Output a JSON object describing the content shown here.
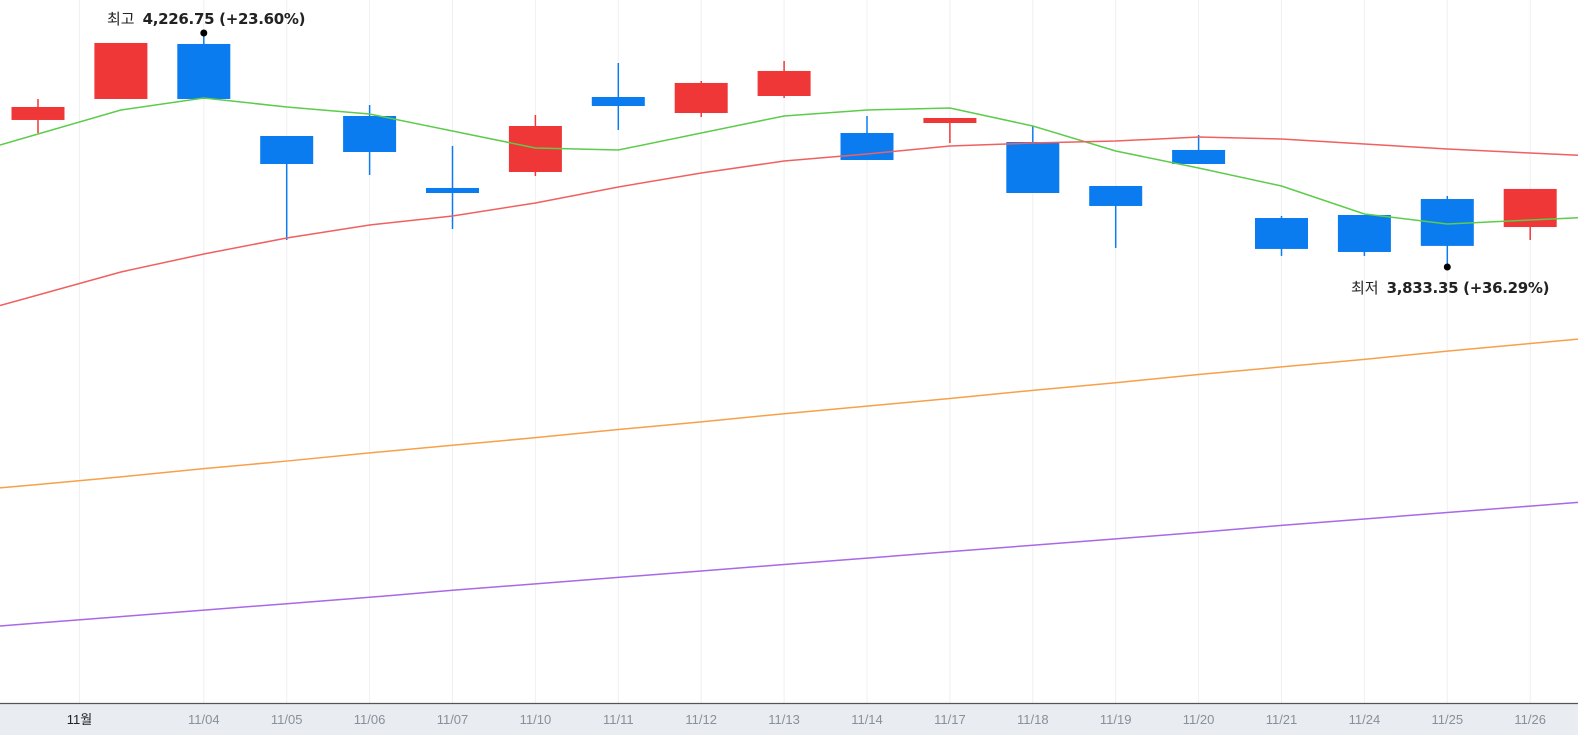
{
  "chart_data": {
    "type": "candlestick",
    "colors": {
      "up": "#ef3737",
      "down": "#0b7cf0",
      "ma5": "#5ccc4a",
      "ma20": "#f06060",
      "ma60": "#f7a04a",
      "ma120": "#a968e6",
      "axis_bg": "#e9edf2",
      "grid": "#eef0f3"
    },
    "grid": true,
    "y_axis_shown": false,
    "x_ticks": [
      {
        "label": "11월",
        "at": 0.5,
        "month": true
      },
      {
        "label": "11/04",
        "at": 2
      },
      {
        "label": "11/05",
        "at": 3
      },
      {
        "label": "11/06",
        "at": 4
      },
      {
        "label": "11/07",
        "at": 5
      },
      {
        "label": "11/10",
        "at": 6
      },
      {
        "label": "11/11",
        "at": 7
      },
      {
        "label": "11/12",
        "at": 8
      },
      {
        "label": "11/13",
        "at": 9
      },
      {
        "label": "11/14",
        "at": 10
      },
      {
        "label": "11/17",
        "at": 11
      },
      {
        "label": "11/18",
        "at": 12
      },
      {
        "label": "11/19",
        "at": 13
      },
      {
        "label": "11/20",
        "at": 14
      },
      {
        "label": "11/21",
        "at": 15
      },
      {
        "label": "11/24",
        "at": 16
      },
      {
        "label": "11/25",
        "at": 17
      },
      {
        "label": "11/26",
        "at": 18
      }
    ],
    "candles": [
      {
        "o": 4081.4,
        "h": 4117.3,
        "l": 4059.1,
        "c": 4103.6
      },
      {
        "o": 4117.3,
        "h": 4213.1,
        "l": 4117.3,
        "c": 4213.1
      },
      {
        "o": 4211.4,
        "h": 4226.75,
        "l": 4117.3,
        "c": 4117.3
      },
      {
        "o": 4054.0,
        "h": 4054.0,
        "l": 3876.1,
        "c": 4006.1
      },
      {
        "o": 4088.2,
        "h": 4107.0,
        "l": 3987.3,
        "c": 4026.6
      },
      {
        "o": 3965.1,
        "h": 4036.9,
        "l": 3894.9,
        "c": 3956.5
      },
      {
        "o": 3992.4,
        "h": 4089.9,
        "l": 3985.6,
        "c": 4071.1
      },
      {
        "o": 4120.7,
        "h": 4178.9,
        "l": 4064.3,
        "c": 4105.3
      },
      {
        "o": 4093.3,
        "h": 4148.1,
        "l": 4086.5,
        "c": 4144.7
      },
      {
        "o": 4122.4,
        "h": 4182.3,
        "l": 4119.0,
        "c": 4165.2
      },
      {
        "o": 4059.1,
        "h": 4088.2,
        "l": 4012.9,
        "c": 4012.9
      },
      {
        "o": 4076.2,
        "h": 4084.8,
        "l": 4042.0,
        "c": 4084.8
      },
      {
        "o": 4043.7,
        "h": 4071.1,
        "l": 3956.5,
        "c": 3956.5
      },
      {
        "o": 3968.5,
        "h": 3968.5,
        "l": 3862.5,
        "c": 3934.3
      },
      {
        "o": 4030.1,
        "h": 4055.7,
        "l": 4006.1,
        "c": 4006.1
      },
      {
        "o": 3913.7,
        "h": 3917.2,
        "l": 3848.8,
        "c": 3860.8
      },
      {
        "o": 3918.9,
        "h": 3918.9,
        "l": 3848.8,
        "c": 3855.6
      },
      {
        "o": 3946.2,
        "h": 3951.4,
        "l": 3833.35,
        "c": 3866.0
      },
      {
        "o": 3898.3,
        "h": 3963.4,
        "l": 3876.1,
        "c": 3963.4
      }
    ],
    "moving_averages": [
      {
        "key": "ma5",
        "values": [
          4057.4,
          4098.5,
          4119.0,
          4103.6,
          4091.6,
          4062.5,
          4033.5,
          4030.0,
          4059.1,
          4088.2,
          4098.5,
          4101.9,
          4071.1,
          4028.3,
          3999.2,
          3968.5,
          3920.6,
          3903.5,
          3910.3
        ]
      },
      {
        "key": "ma20",
        "values": [
          3782.0,
          3821.4,
          3852.2,
          3879.5,
          3901.8,
          3917.2,
          3939.4,
          3966.8,
          3990.7,
          4011.2,
          4023.2,
          4036.9,
          4042.0,
          4045.4,
          4052.3,
          4048.8,
          4040.3,
          4031.7,
          4024.9
        ]
      },
      {
        "key": "ma60",
        "values": [
          3458,
          3471,
          3485,
          3498,
          3512,
          3525,
          3538,
          3552,
          3565,
          3579,
          3592,
          3605,
          3619,
          3632,
          3646,
          3659,
          3672,
          3686,
          3699
        ]
      },
      {
        "key": "ma120",
        "values": [
          3221,
          3232,
          3243,
          3254,
          3265,
          3277,
          3288,
          3299,
          3310,
          3321,
          3332,
          3343,
          3354,
          3365,
          3376,
          3388,
          3399,
          3410,
          3421
        ]
      }
    ],
    "annotations": {
      "high": {
        "label": "최고",
        "value": "4,226.75 (+23.60%)",
        "price": 4226.75,
        "at": 2
      },
      "low": {
        "label": "최저",
        "value": "3,833.35 (+36.29%)",
        "price": 3833.35,
        "at": 17
      }
    }
  }
}
